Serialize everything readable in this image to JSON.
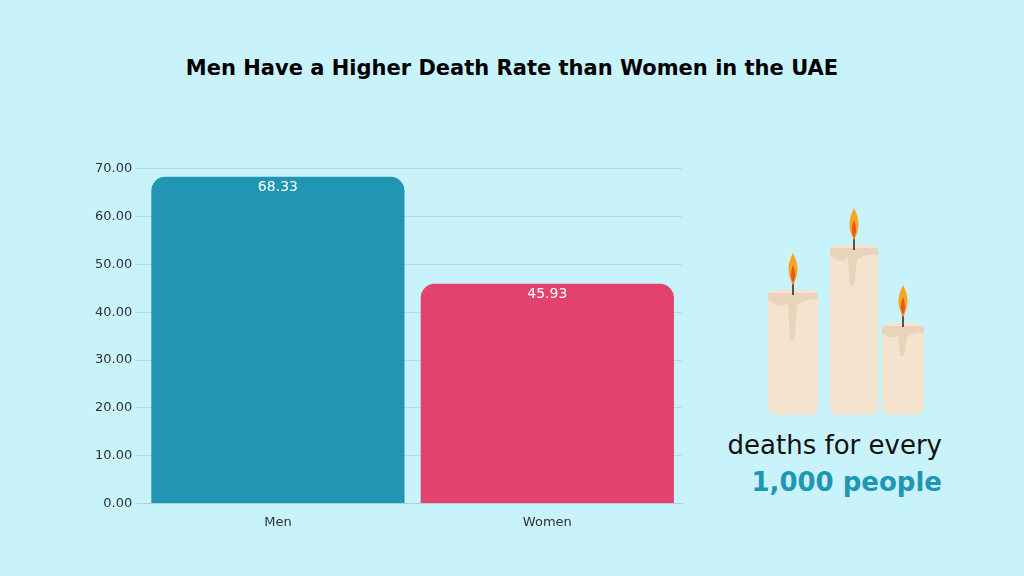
{
  "chart_data": {
    "type": "bar",
    "title": "Men Have a Higher Death Rate than Women in the UAE",
    "categories": [
      "Men",
      "Women"
    ],
    "values": [
      68.33,
      45.93
    ],
    "colors": [
      "#2196b4",
      "#e3426e"
    ],
    "ylim": [
      0,
      70
    ],
    "yticks": [
      {
        "value": 0,
        "label": "0.00"
      },
      {
        "value": 10,
        "label": "10.00"
      },
      {
        "value": 20,
        "label": "20.00"
      },
      {
        "value": 30,
        "label": "30.00"
      },
      {
        "value": 40,
        "label": "40.00"
      },
      {
        "value": 50,
        "label": "50.00"
      },
      {
        "value": 60,
        "label": "60.00"
      },
      {
        "value": 70,
        "label": "70.00"
      }
    ],
    "grid": true,
    "data_labels": true,
    "annotations": [
      "deaths for every",
      "1,000 people"
    ]
  }
}
